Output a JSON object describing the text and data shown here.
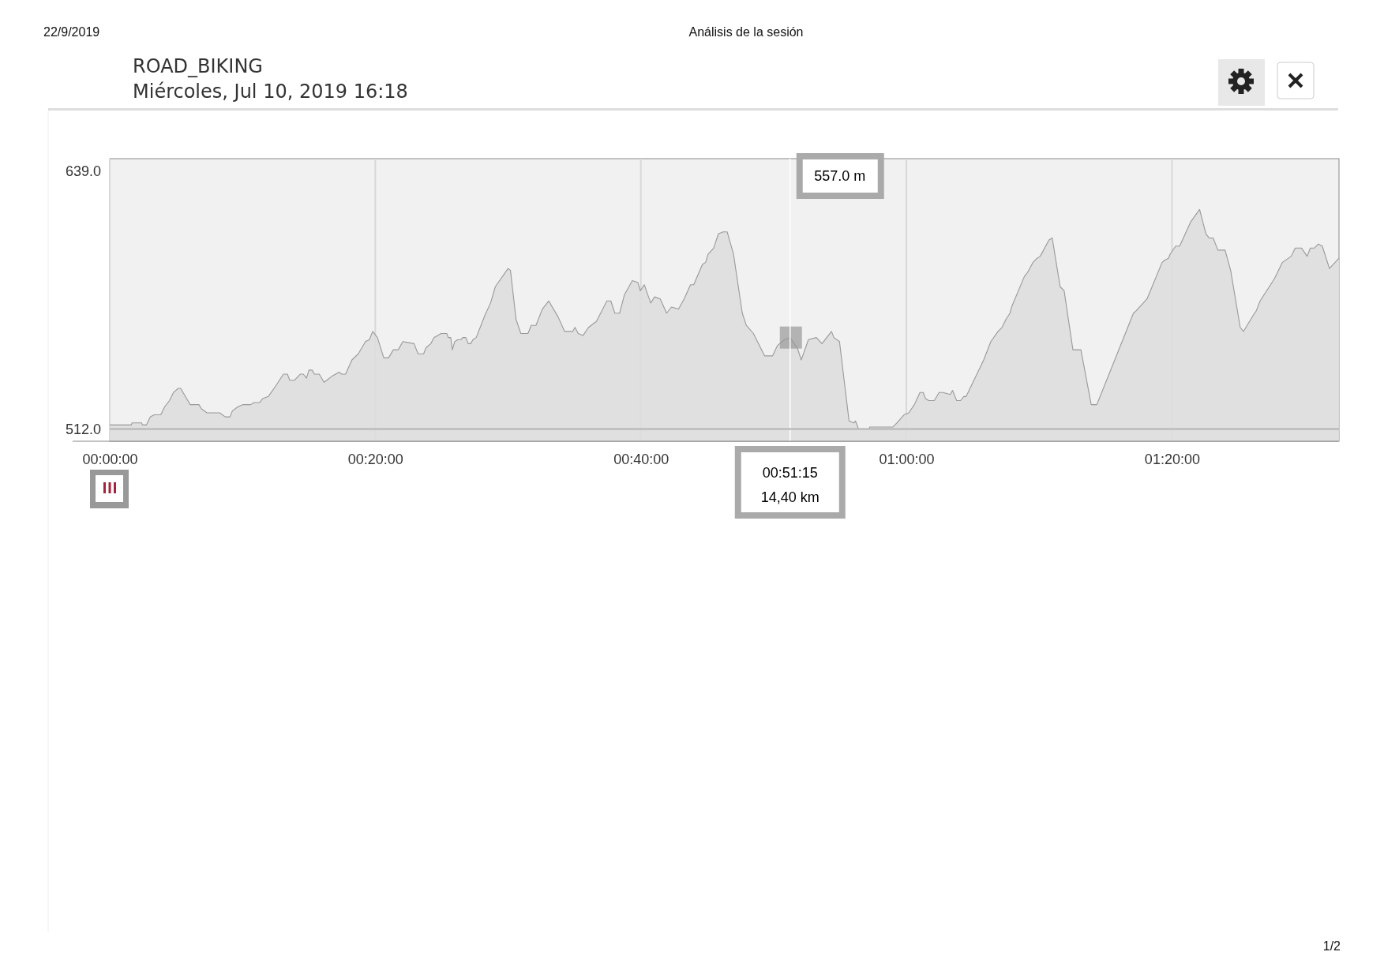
{
  "chart_data": {
    "type": "area",
    "title": "ROAD_BIKING",
    "subtitle": "Miércoles, Jul 10, 2019 16:18",
    "annotations": [
      "22/9/2019",
      "Análisis de la sesión",
      "1/2",
      "557.0 m",
      "00:51:15",
      "14,40 km"
    ],
    "xlim": [
      0,
      1.543
    ],
    "xticks": [
      {
        "value": 0,
        "label": "00:00:00"
      },
      {
        "value": 0.3333,
        "label": "00:20:00"
      },
      {
        "value": 0.6667,
        "label": "00:40:00"
      },
      {
        "value": 1,
        "label": "01:00:00"
      },
      {
        "value": 1.3333,
        "label": "01:20:00"
      }
    ],
    "ylim": [
      506,
      645
    ],
    "yticks": [
      {
        "value": 512,
        "label": "512.0"
      },
      {
        "value": 639,
        "label": "639.0"
      }
    ],
    "grid": "x",
    "marker": "none",
    "line_style": "solid",
    "ref_lines": [
      {
        "axis": "x",
        "value": 0.854,
        "color": "#ffffff"
      },
      {
        "axis": "y",
        "value": 512,
        "color": "#bbbbbb"
      }
    ],
    "series": [
      {
        "color": "#999999",
        "x": [
          0,
          0.027,
          0.028,
          0.04,
          0.041,
          0.046,
          0.051,
          0.056,
          0.064,
          0.069,
          0.075,
          0.08,
          0.086,
          0.089,
          0.101,
          0.112,
          0.115,
          0.122,
          0.138,
          0.145,
          0.151,
          0.154,
          0.161,
          0.167,
          0.177,
          0.181,
          0.188,
          0.192,
          0.199,
          0.208,
          0.218,
          0.223,
          0.226,
          0.232,
          0.239,
          0.243,
          0.247,
          0.25,
          0.254,
          0.257,
          0.263,
          0.269,
          0.279,
          0.288,
          0.291,
          0.296,
          0.304,
          0.312,
          0.321,
          0.326,
          0.33,
          0.336,
          0.344,
          0.35,
          0.356,
          0.362,
          0.368,
          0.382,
          0.387,
          0.394,
          0.397,
          0.403,
          0.407,
          0.416,
          0.423,
          0.425,
          0.428,
          0.43,
          0.433,
          0.437,
          0.441,
          0.443,
          0.447,
          0.45,
          0.453,
          0.456,
          0.46,
          0.465,
          0.471,
          0.478,
          0.484,
          0.5,
          0.503,
          0.51,
          0.516,
          0.525,
          0.529,
          0.535,
          0.543,
          0.551,
          0.563,
          0.571,
          0.581,
          0.584,
          0.588,
          0.594,
          0.601,
          0.611,
          0.624,
          0.629,
          0.634,
          0.64,
          0.646,
          0.656,
          0.663,
          0.666,
          0.671,
          0.679,
          0.684,
          0.691,
          0.699,
          0.705,
          0.714,
          0.721,
          0.729,
          0.733,
          0.744,
          0.748,
          0.751,
          0.758,
          0.764,
          0.77,
          0.775,
          0.783,
          0.794,
          0.799,
          0.808,
          0.813,
          0.822,
          0.832,
          0.838,
          0.847,
          0.854,
          0.863,
          0.868,
          0.877,
          0.887,
          0.894,
          0.906,
          0.909,
          0.916,
          0.928,
          0.934,
          0.936,
          0.94,
          0.953,
          0.954,
          0.983,
          0.988,
          0.997,
          1.003,
          1.01,
          1.017,
          1.021,
          1.024,
          1.028,
          1.035,
          1.041,
          1.046,
          1.055,
          1.058,
          1.063,
          1.068,
          1.072,
          1.075,
          1.097,
          1.106,
          1.115,
          1.12,
          1.125,
          1.13,
          1.132,
          1.148,
          1.152,
          1.159,
          1.164,
          1.168,
          1.179,
          1.183,
          1.193,
          1.198,
          1.209,
          1.219,
          1.232,
          1.239,
          1.285,
          1.288,
          1.302,
          1.321,
          1.324,
          1.329,
          1.331,
          1.338,
          1.343,
          1.357,
          1.368,
          1.376,
          1.38,
          1.385,
          1.391,
          1.4,
          1.407,
          1.419,
          1.423,
          1.437,
          1.439,
          1.444,
          1.462,
          1.472,
          1.483,
          1.488,
          1.496,
          1.503,
          1.507,
          1.512,
          1.517,
          1.522,
          1.531,
          1.543
        ],
        "values": [
          514,
          514,
          515,
          515,
          514,
          514,
          518,
          519,
          519,
          523,
          526,
          530,
          532,
          532,
          524,
          524,
          522,
          520,
          520,
          518,
          518,
          521,
          523,
          524,
          524,
          525,
          525,
          527,
          528,
          533,
          539,
          539,
          536,
          536,
          539,
          539,
          537,
          541,
          541,
          539,
          539,
          535,
          538,
          540,
          539,
          539,
          546,
          549,
          555,
          556,
          560,
          557,
          547,
          547,
          551,
          551,
          555,
          554,
          549,
          549,
          552,
          554,
          557,
          559,
          559,
          557,
          557,
          551,
          555,
          556,
          556,
          557,
          557,
          554,
          554,
          556,
          557,
          562,
          568,
          574,
          582,
          591,
          590,
          566,
          559,
          559,
          563,
          563,
          571,
          575,
          567,
          560,
          560,
          562,
          559,
          558,
          562,
          565,
          575,
          575,
          569,
          569,
          578,
          585,
          584,
          580,
          583,
          574,
          577,
          576,
          569,
          572,
          571,
          576,
          583,
          583,
          593,
          594,
          598,
          601,
          608,
          609,
          609,
          598,
          569,
          563,
          559,
          555,
          548,
          548,
          553,
          556,
          557,
          552,
          546,
          556,
          557,
          554,
          560,
          557,
          555,
          516,
          515,
          516,
          512,
          512,
          513,
          513,
          515,
          519,
          520,
          524,
          530,
          530,
          527,
          526,
          526,
          530,
          530,
          529,
          531,
          526,
          526,
          528,
          528,
          546,
          555,
          560,
          562,
          566,
          569,
          572,
          587,
          589,
          594,
          596,
          597,
          605,
          606,
          582,
          580,
          551,
          551,
          524,
          524,
          569,
          570,
          576,
          594,
          595,
          596,
          598,
          602,
          602,
          614,
          620,
          608,
          606,
          606,
          600,
          600,
          590,
          562,
          560,
          569,
          570,
          575,
          586,
          594,
          597,
          601,
          601,
          597,
          601,
          601,
          603,
          602,
          591,
          596
        ]
      }
    ]
  }
}
